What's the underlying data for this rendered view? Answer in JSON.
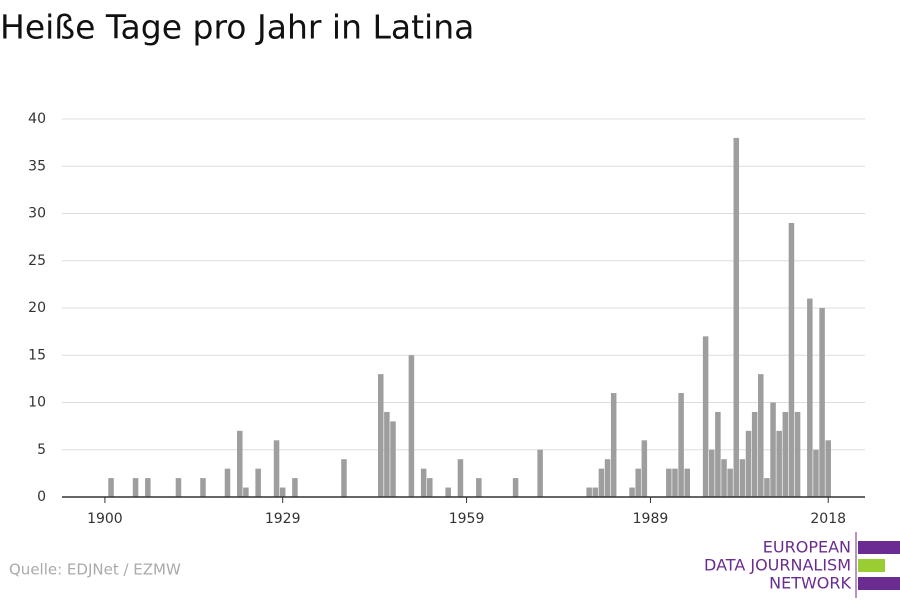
{
  "chart_data": {
    "type": "bar",
    "title": "Heiße Tage pro Jahr in Latina",
    "x": [
      1901,
      1905,
      1907,
      1912,
      1916,
      1920,
      1922,
      1923,
      1925,
      1928,
      1929,
      1931,
      1939,
      1945,
      1946,
      1947,
      1950,
      1952,
      1953,
      1956,
      1958,
      1961,
      1967,
      1971,
      1979,
      1980,
      1981,
      1982,
      1983,
      1986,
      1987,
      1988,
      1992,
      1993,
      1994,
      1995,
      1998,
      1999,
      2000,
      2001,
      2002,
      2003,
      2004,
      2005,
      2006,
      2007,
      2008,
      2009,
      2010,
      2011,
      2012,
      2013,
      2015,
      2016,
      2017,
      2018
    ],
    "values": [
      2,
      2,
      2,
      2,
      2,
      3,
      7,
      1,
      3,
      6,
      1,
      2,
      4,
      13,
      9,
      8,
      15,
      3,
      2,
      1,
      4,
      2,
      2,
      5,
      1,
      1,
      3,
      4,
      11,
      1,
      3,
      6,
      3,
      3,
      11,
      3,
      17,
      5,
      9,
      4,
      3,
      38,
      4,
      7,
      9,
      13,
      2,
      10,
      7,
      9,
      29,
      9,
      21,
      5,
      20,
      6
    ],
    "color": "#9e9e9e",
    "xlim": [
      1893,
      2024
    ],
    "xticks": [
      1900,
      1929,
      1959,
      1989,
      2018
    ],
    "ylim": [
      0,
      40
    ],
    "yticks": [
      0,
      5,
      10,
      15,
      20,
      25,
      30,
      35,
      40
    ],
    "grid": true,
    "source": "Quelle: EDJNet / EZMW",
    "logo": [
      "EUROPEAN",
      "DATA JOURNALISM",
      "NETWORK"
    ]
  }
}
